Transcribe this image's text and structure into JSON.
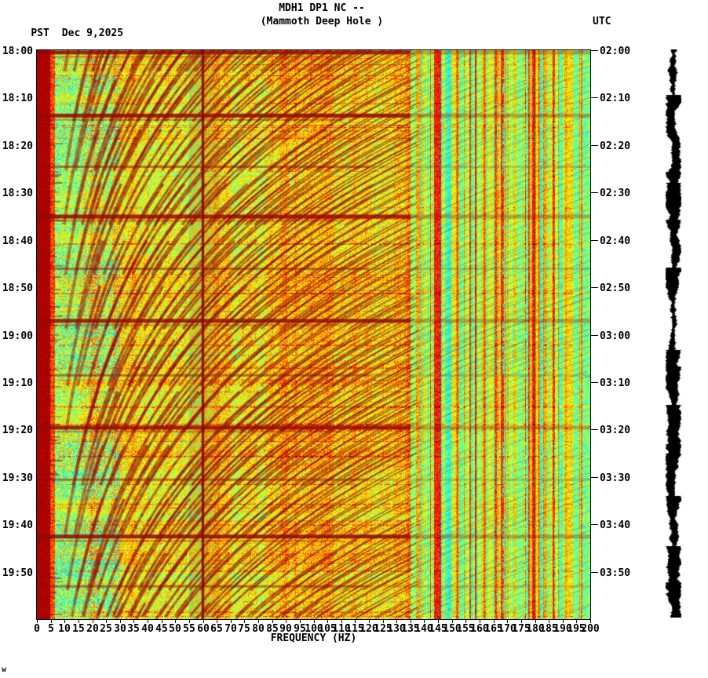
{
  "header": {
    "title_line1": "MDH1 DP1 NC --",
    "title_line2": "(Mammoth Deep Hole )",
    "left_tz": "PST",
    "date": "Dec 9,2025",
    "right_tz": "UTC"
  },
  "footer": {
    "glyph": "w"
  },
  "chart_data": {
    "type": "heatmap",
    "subtype": "seismic-spectrogram",
    "title": "MDH1 DP1 NC -- (Mammoth Deep Hole )",
    "xlabel": "FREQUENCY (HZ)",
    "x_range_hz": [
      0,
      200
    ],
    "x_tick_step_hz": 5,
    "x_ticks": [
      0,
      5,
      10,
      15,
      20,
      25,
      30,
      35,
      40,
      45,
      50,
      55,
      60,
      65,
      70,
      75,
      80,
      85,
      90,
      95,
      100,
      105,
      110,
      115,
      120,
      125,
      130,
      135,
      140,
      145,
      150,
      155,
      160,
      165,
      170,
      175,
      180,
      185,
      190,
      195,
      200
    ],
    "time_span_minutes": 120,
    "left_time_axis": {
      "tz": "PST",
      "labels": [
        "18:00",
        "18:10",
        "18:20",
        "18:30",
        "18:40",
        "18:50",
        "19:00",
        "19:10",
        "19:20",
        "19:30",
        "19:40",
        "19:50"
      ]
    },
    "right_time_axis": {
      "tz": "UTC",
      "labels": [
        "02:00",
        "02:10",
        "02:20",
        "02:30",
        "02:40",
        "02:50",
        "03:00",
        "03:10",
        "03:20",
        "03:30",
        "03:40",
        "03:50"
      ]
    },
    "colormap": "jet",
    "features": {
      "vertical_lines_hz": [
        60,
        180
      ],
      "strong_event_minutes": [
        0.4,
        13.7,
        35,
        57,
        79.5,
        102.5
      ],
      "medium_event_minutes": [
        24.5,
        46,
        68.5,
        90.5,
        113
      ],
      "tremor_cycle_minutes": 11,
      "low_freq_saturated_band_hz": [
        0,
        5
      ],
      "texture_transition_hz": 135
    }
  }
}
